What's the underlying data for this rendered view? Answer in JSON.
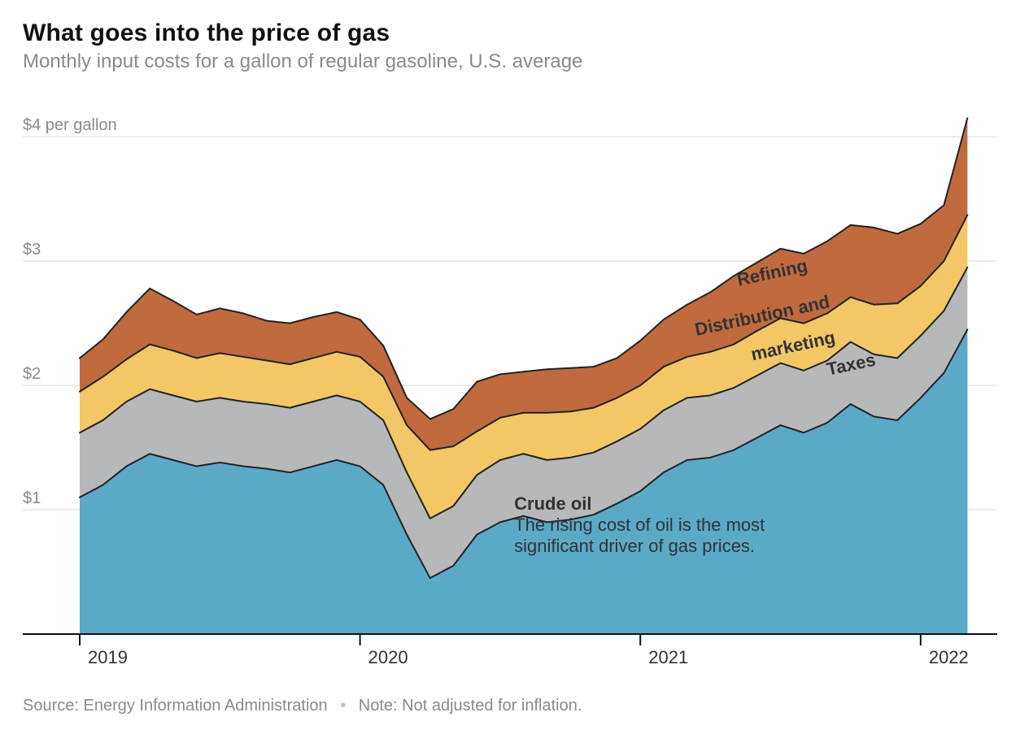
{
  "header": {
    "title": "What goes into the price of gas",
    "subtitle": "Monthly input costs for a gallon of regular gasoline, U.S. average"
  },
  "footer": {
    "source_label": "Source: Energy Information Administration",
    "note_label": "Note: Not adjusted for inflation."
  },
  "chart": {
    "type": "stacked-area",
    "background_color": "#ffffff",
    "axis_color": "#111111",
    "grid_color": "#d9d9d9",
    "stroke_color": "#222222",
    "stroke_width": 2,
    "x": {
      "start": 2019.0,
      "end": 2022.25,
      "ticks": [
        {
          "value": 2019,
          "label": "2019"
        },
        {
          "value": 2020,
          "label": "2020"
        },
        {
          "value": 2021,
          "label": "2021"
        },
        {
          "value": 2022,
          "label": "2022"
        }
      ],
      "tick_len": 14,
      "tick_fontsize": 22,
      "tick_color": "#333333"
    },
    "y": {
      "min": 0,
      "max": 4.25,
      "ticks": [
        {
          "value": 1,
          "label": "$1"
        },
        {
          "value": 2,
          "label": "$2"
        },
        {
          "value": 3,
          "label": "$3"
        },
        {
          "value": 4,
          "label": "$4 per gallon"
        }
      ],
      "tick_fontsize": 20,
      "tick_color": "#8a8a8a"
    },
    "x_values": [
      2019.0,
      2019.083,
      2019.167,
      2019.25,
      2019.333,
      2019.417,
      2019.5,
      2019.583,
      2019.667,
      2019.75,
      2019.833,
      2019.917,
      2020.0,
      2020.083,
      2020.167,
      2020.25,
      2020.333,
      2020.417,
      2020.5,
      2020.583,
      2020.667,
      2020.75,
      2020.833,
      2020.917,
      2021.0,
      2021.083,
      2021.167,
      2021.25,
      2021.333,
      2021.417,
      2021.5,
      2021.583,
      2021.667,
      2021.75,
      2021.833,
      2021.917,
      2022.0,
      2022.083,
      2022.167
    ],
    "series": [
      {
        "key": "crude_oil",
        "label": "Crude oil",
        "color": "#5aa9c7",
        "color_deep": "#3894b8",
        "values": [
          1.1,
          1.2,
          1.35,
          1.45,
          1.4,
          1.35,
          1.38,
          1.35,
          1.33,
          1.3,
          1.35,
          1.4,
          1.35,
          1.2,
          0.8,
          0.45,
          0.55,
          0.8,
          0.9,
          0.95,
          0.9,
          0.92,
          0.96,
          1.05,
          1.15,
          1.3,
          1.4,
          1.42,
          1.48,
          1.58,
          1.68,
          1.62,
          1.7,
          1.85,
          1.75,
          1.72,
          1.9,
          2.1,
          2.45
        ]
      },
      {
        "key": "taxes",
        "label": "Taxes",
        "color": "#b7b8b9",
        "values": [
          0.52,
          0.52,
          0.52,
          0.52,
          0.52,
          0.52,
          0.52,
          0.52,
          0.52,
          0.52,
          0.52,
          0.52,
          0.52,
          0.52,
          0.5,
          0.48,
          0.48,
          0.48,
          0.5,
          0.5,
          0.5,
          0.5,
          0.5,
          0.5,
          0.5,
          0.5,
          0.5,
          0.5,
          0.5,
          0.5,
          0.5,
          0.5,
          0.5,
          0.5,
          0.5,
          0.5,
          0.5,
          0.5,
          0.5
        ]
      },
      {
        "key": "distribution_marketing",
        "label": "Distribution and marketing",
        "color": "#f3c766",
        "values": [
          0.33,
          0.35,
          0.34,
          0.36,
          0.36,
          0.35,
          0.36,
          0.36,
          0.35,
          0.35,
          0.35,
          0.35,
          0.36,
          0.35,
          0.38,
          0.55,
          0.48,
          0.35,
          0.34,
          0.33,
          0.38,
          0.37,
          0.36,
          0.35,
          0.35,
          0.35,
          0.33,
          0.35,
          0.35,
          0.36,
          0.36,
          0.38,
          0.38,
          0.36,
          0.4,
          0.44,
          0.4,
          0.4,
          0.42
        ]
      },
      {
        "key": "refining",
        "label": "Refining",
        "color": "#c06a3e",
        "values": [
          0.27,
          0.3,
          0.38,
          0.45,
          0.4,
          0.35,
          0.36,
          0.35,
          0.32,
          0.33,
          0.33,
          0.32,
          0.3,
          0.25,
          0.22,
          0.25,
          0.3,
          0.4,
          0.35,
          0.33,
          0.35,
          0.35,
          0.33,
          0.32,
          0.36,
          0.38,
          0.42,
          0.48,
          0.55,
          0.55,
          0.56,
          0.56,
          0.58,
          0.58,
          0.62,
          0.56,
          0.5,
          0.45,
          0.78
        ]
      }
    ],
    "series_labels": [
      {
        "key": "refining",
        "text": "Refining",
        "x": 2021.35,
        "y": 2.8,
        "angle": -12
      },
      {
        "key": "distribution_marketing",
        "text": "Distribution and",
        "x": 2021.2,
        "y": 2.4,
        "angle": -12
      },
      {
        "key": "distribution_marketing2",
        "text": "marketing",
        "x": 2021.4,
        "y": 2.2,
        "angle": -12
      },
      {
        "key": "taxes",
        "text": "Taxes",
        "x": 2021.67,
        "y": 2.08,
        "angle": -12
      }
    ],
    "annotation": {
      "title": "Crude oil",
      "body_lines": [
        "The rising cost of oil is the most",
        "significant driver of gas prices."
      ],
      "x": 2020.55,
      "y_title": 1.0,
      "line_height": 0.17,
      "title_fontsize": 22,
      "body_fontsize": 22,
      "color": "#333333"
    }
  }
}
